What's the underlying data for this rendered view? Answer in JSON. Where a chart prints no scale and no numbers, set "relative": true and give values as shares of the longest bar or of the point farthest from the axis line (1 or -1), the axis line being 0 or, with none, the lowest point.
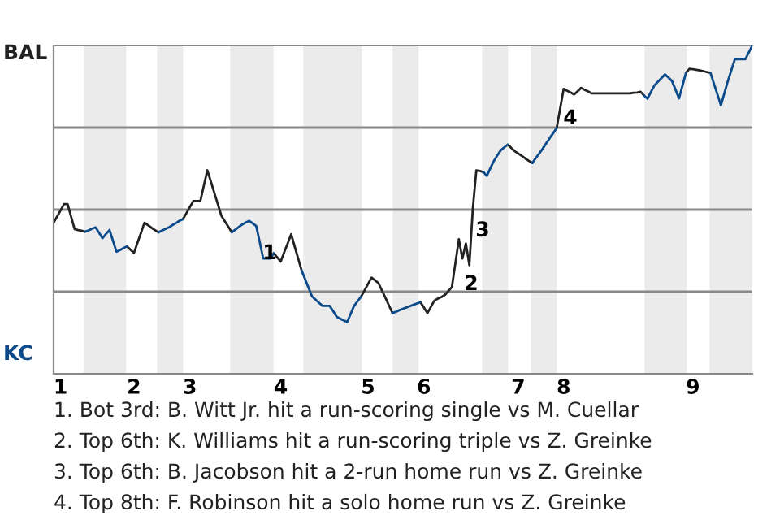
{
  "chart_data": {
    "type": "line",
    "relative": true,
    "categories": [
      null,
      null,
      "1",
      null,
      null,
      null,
      null,
      null,
      null,
      null,
      null,
      null,
      null,
      null,
      null,
      null,
      null,
      null,
      null,
      null,
      null,
      null,
      null,
      "2",
      null,
      null,
      null,
      null,
      null,
      null,
      null,
      null,
      null,
      null,
      null,
      null,
      null,
      null,
      null,
      "3",
      null,
      null,
      null,
      null,
      null,
      null,
      null,
      null,
      null,
      null,
      null,
      null,
      null,
      null,
      null,
      null,
      null,
      null,
      null,
      null,
      null,
      null,
      null,
      null,
      null,
      "4",
      null,
      null,
      null,
      null,
      null,
      null,
      null,
      null,
      null,
      null,
      null,
      null,
      null,
      null,
      null,
      null,
      null,
      null,
      null,
      null,
      null,
      null,
      null,
      null,
      "5",
      null,
      null,
      null,
      null,
      null,
      null,
      null,
      null,
      null,
      null,
      null,
      null,
      null,
      null,
      null,
      "6",
      null,
      null,
      null,
      null,
      null,
      null,
      null,
      null,
      null,
      null,
      null,
      null,
      null,
      null,
      null,
      null,
      null,
      null,
      null,
      null,
      null,
      null,
      null,
      null,
      null,
      null,
      "7",
      null,
      null,
      null,
      null,
      null,
      null,
      null,
      null,
      null,
      null,
      null,
      null,
      "8",
      null,
      null,
      null,
      null,
      null,
      null,
      null,
      null,
      null,
      null,
      null,
      null,
      null,
      null,
      null,
      null,
      null,
      null,
      null,
      null,
      null,
      null,
      null,
      null,
      null,
      null,
      null,
      null,
      null,
      null,
      null,
      null,
      null,
      null,
      null,
      null,
      "9",
      null,
      null,
      null,
      null,
      null,
      null,
      null,
      null,
      null,
      null,
      null,
      null,
      null,
      null,
      null,
      null,
      null
    ],
    "series": [
      {
        "color": "#222222",
        "values": [
          0.46,
          0.479,
          0.498,
          0.517,
          0.517,
          0.479,
          0.441,
          0.438,
          0.436,
          0.433,
          null,
          null,
          null,
          null,
          null,
          null,
          null,
          null,
          null,
          null,
          null,
          0.388,
          0.378,
          0.368,
          0.399,
          0.429,
          0.46,
          0.453,
          0.445,
          0.438,
          0.431,
          null,
          null,
          null,
          null,
          null,
          null,
          0.471,
          0.489,
          0.508,
          0.526,
          0.526,
          0.526,
          0.573,
          0.62,
          0.586,
          0.551,
          0.517,
          0.482,
          0.465,
          0.448,
          0.431,
          null,
          null,
          null,
          null,
          null,
          null,
          null,
          null,
          null,
          null,
          null,
          0.367,
          0.355,
          0.342,
          0.37,
          0.397,
          0.425,
          0.388,
          0.351,
          0.314,
          null,
          null,
          null,
          null,
          null,
          null,
          null,
          null,
          null,
          null,
          null,
          null,
          null,
          null,
          null,
          null,
          0.235,
          0.254,
          0.274,
          0.293,
          0.285,
          0.276,
          0.253,
          0.231,
          0.208,
          0.185,
          null,
          null,
          null,
          null,
          null,
          null,
          null,
          0.218,
          0.202,
          0.185,
          0.204,
          0.223,
          0.229,
          0.234,
          0.24,
          0.252,
          0.264,
          0.337,
          0.41,
          0.351,
          0.397,
          0.331,
          0.504,
          0.62,
          0.618,
          0.615,
          null,
          null,
          null,
          null,
          null,
          null,
          0.698,
          0.688,
          0.678,
          0.671,
          0.664,
          0.656,
          0.649,
          0.642,
          null,
          null,
          null,
          null,
          null,
          null,
          0.749,
          0.809,
          0.868,
          0.862,
          0.857,
          0.851,
          0.861,
          0.871,
          0.865,
          0.86,
          0.854,
          0.854,
          0.854,
          0.854,
          0.854,
          0.854,
          0.854,
          0.854,
          0.854,
          0.854,
          0.854,
          0.854,
          0.856,
          0.857,
          0.859,
          0.848,
          null,
          null,
          null,
          null,
          null,
          null,
          null,
          null,
          null,
          null,
          null,
          0.917,
          0.929,
          0.928,
          0.926,
          0.924,
          0.922,
          0.919,
          0.917,
          null,
          null,
          null,
          null,
          null,
          null,
          null,
          null,
          null,
          null,
          null,
          null
        ]
      },
      {
        "color": "#0b4a8a",
        "values": [
          null,
          null,
          null,
          null,
          null,
          null,
          null,
          null,
          null,
          0.433,
          0.437,
          0.442,
          0.446,
          0.43,
          0.413,
          0.426,
          0.438,
          0.405,
          0.372,
          0.377,
          0.383,
          0.388,
          null,
          null,
          null,
          null,
          null,
          null,
          null,
          null,
          0.431,
          0.436,
          0.441,
          0.446,
          0.453,
          0.459,
          0.466,
          0.471,
          null,
          null,
          null,
          null,
          null,
          null,
          null,
          null,
          null,
          null,
          null,
          null,
          null,
          0.431,
          0.439,
          0.447,
          0.455,
          0.461,
          0.466,
          0.458,
          0.45,
          0.401,
          0.351,
          0.351,
          0.351,
          0.367,
          null,
          null,
          null,
          null,
          null,
          null,
          null,
          0.314,
          0.288,
          0.261,
          0.235,
          0.226,
          0.216,
          0.207,
          0.207,
          0.207,
          0.191,
          0.174,
          0.168,
          0.163,
          0.157,
          0.182,
          0.207,
          0.221,
          0.235,
          null,
          null,
          null,
          null,
          null,
          null,
          null,
          null,
          0.185,
          0.189,
          0.194,
          0.198,
          0.202,
          0.206,
          0.21,
          0.214,
          0.218,
          null,
          null,
          null,
          null,
          null,
          null,
          null,
          null,
          null,
          null,
          null,
          null,
          null,
          null,
          null,
          null,
          null,
          0.615,
          0.603,
          0.626,
          0.648,
          0.665,
          0.681,
          0.69,
          0.698,
          null,
          null,
          null,
          null,
          null,
          null,
          0.642,
          0.657,
          0.671,
          0.686,
          0.702,
          0.718,
          0.733,
          0.749,
          null,
          null,
          null,
          null,
          null,
          null,
          null,
          null,
          null,
          null,
          null,
          null,
          null,
          null,
          null,
          null,
          null,
          null,
          null,
          null,
          null,
          null,
          null,
          null,
          0.848,
          0.838,
          0.859,
          0.879,
          0.89,
          0.901,
          0.912,
          0.902,
          0.892,
          0.866,
          0.839,
          0.878,
          0.917,
          null,
          null,
          null,
          null,
          null,
          null,
          0.917,
          0.884,
          0.851,
          0.818,
          0.855,
          0.892,
          0.925,
          0.958,
          0.958,
          0.958,
          0.958,
          0.979,
          1.0
        ]
      }
    ],
    "ref_lines": [
      {
        "axis": "y",
        "value": 0.25,
        "color": "#888888"
      },
      {
        "axis": "y",
        "value": 0.5,
        "color": "#888888"
      },
      {
        "axis": "y",
        "value": 0.75,
        "color": "#888888"
      }
    ],
    "annotations": [
      "BAL",
      "KC",
      "1",
      "2",
      "3",
      "4",
      "1. Bot 3rd: B. Witt Jr. hit a run-scoring single vs M. Cuellar",
      "2. Top 6th: K. Williams hit a run-scoring triple vs Z. Greinke",
      "3. Top 6th: B. Jacobson hit a 2-run home run vs Z. Greinke",
      "4. Top 8th: F. Robinson hit a solo home run vs Z. Greinke"
    ],
    "line_style": "solid"
  }
}
